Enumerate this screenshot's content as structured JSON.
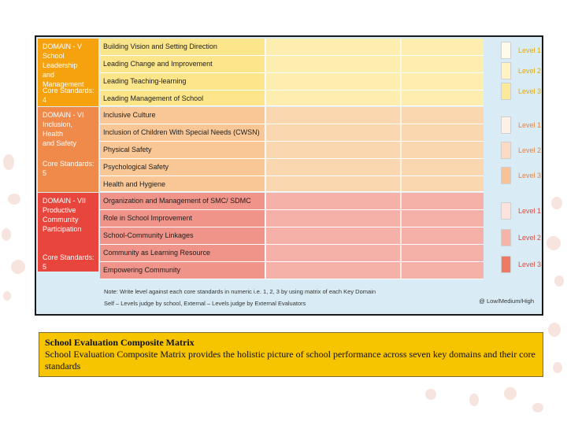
{
  "colors": {
    "domain_v": "#f6a20e",
    "domain_vi": "#f08a4b",
    "domain_vii": "#e8463d",
    "rows_v": "#fdeeb0",
    "rows_vi": "#fbd7b0",
    "rows_vii": "#f5b0a8",
    "background": "#d9ecf5"
  },
  "domains": [
    {
      "title": "DOMAIN - V\nSchool Leadership\nand Management",
      "core": "Core Standards: 4",
      "rows": [
        "Building Vision and Setting Direction",
        "Leading Change and Improvement",
        "Leading Teaching-learning",
        "Leading Management of School"
      ],
      "levels": [
        "Level 1",
        "Level 2",
        "Level 3"
      ]
    },
    {
      "title": "DOMAIN - VI\nInclusion, Health\nand Safety",
      "core": "Core Standards: 5",
      "rows": [
        "Inclusive Culture",
        "Inclusion of Children With Special Needs (CWSN)",
        "Physical Safety",
        "Psychological Safety",
        "Health and Hygiene"
      ],
      "levels": [
        "Level 1",
        "Level 2",
        "Level 3"
      ]
    },
    {
      "title": "DOMAIN - VII\nProductive\nCommunity\nParticipation",
      "core": "Core Standards: 5",
      "rows": [
        "Organization and Management of SMC/ SDMC",
        "Role in School Improvement",
        "School-Community Linkages",
        "Community as Learning Resource",
        "Empowering Community"
      ],
      "levels": [
        "Level 1",
        "Level 2",
        "Level 3"
      ]
    }
  ],
  "notes": {
    "line1": "Note: Write level against each core standards in numeric i.e. 1, 2, 3 by using matrix of each Key Domain",
    "line2": "Self – Levels judge by school, External – Levels judge by External Evaluators",
    "scale": "@ Low/Medium/High"
  },
  "caption": {
    "title": "School Evaluation Composite Matrix",
    "text": "School Evaluation Composite Matrix provides the holistic picture of school performance across seven key domains and their core standards"
  }
}
